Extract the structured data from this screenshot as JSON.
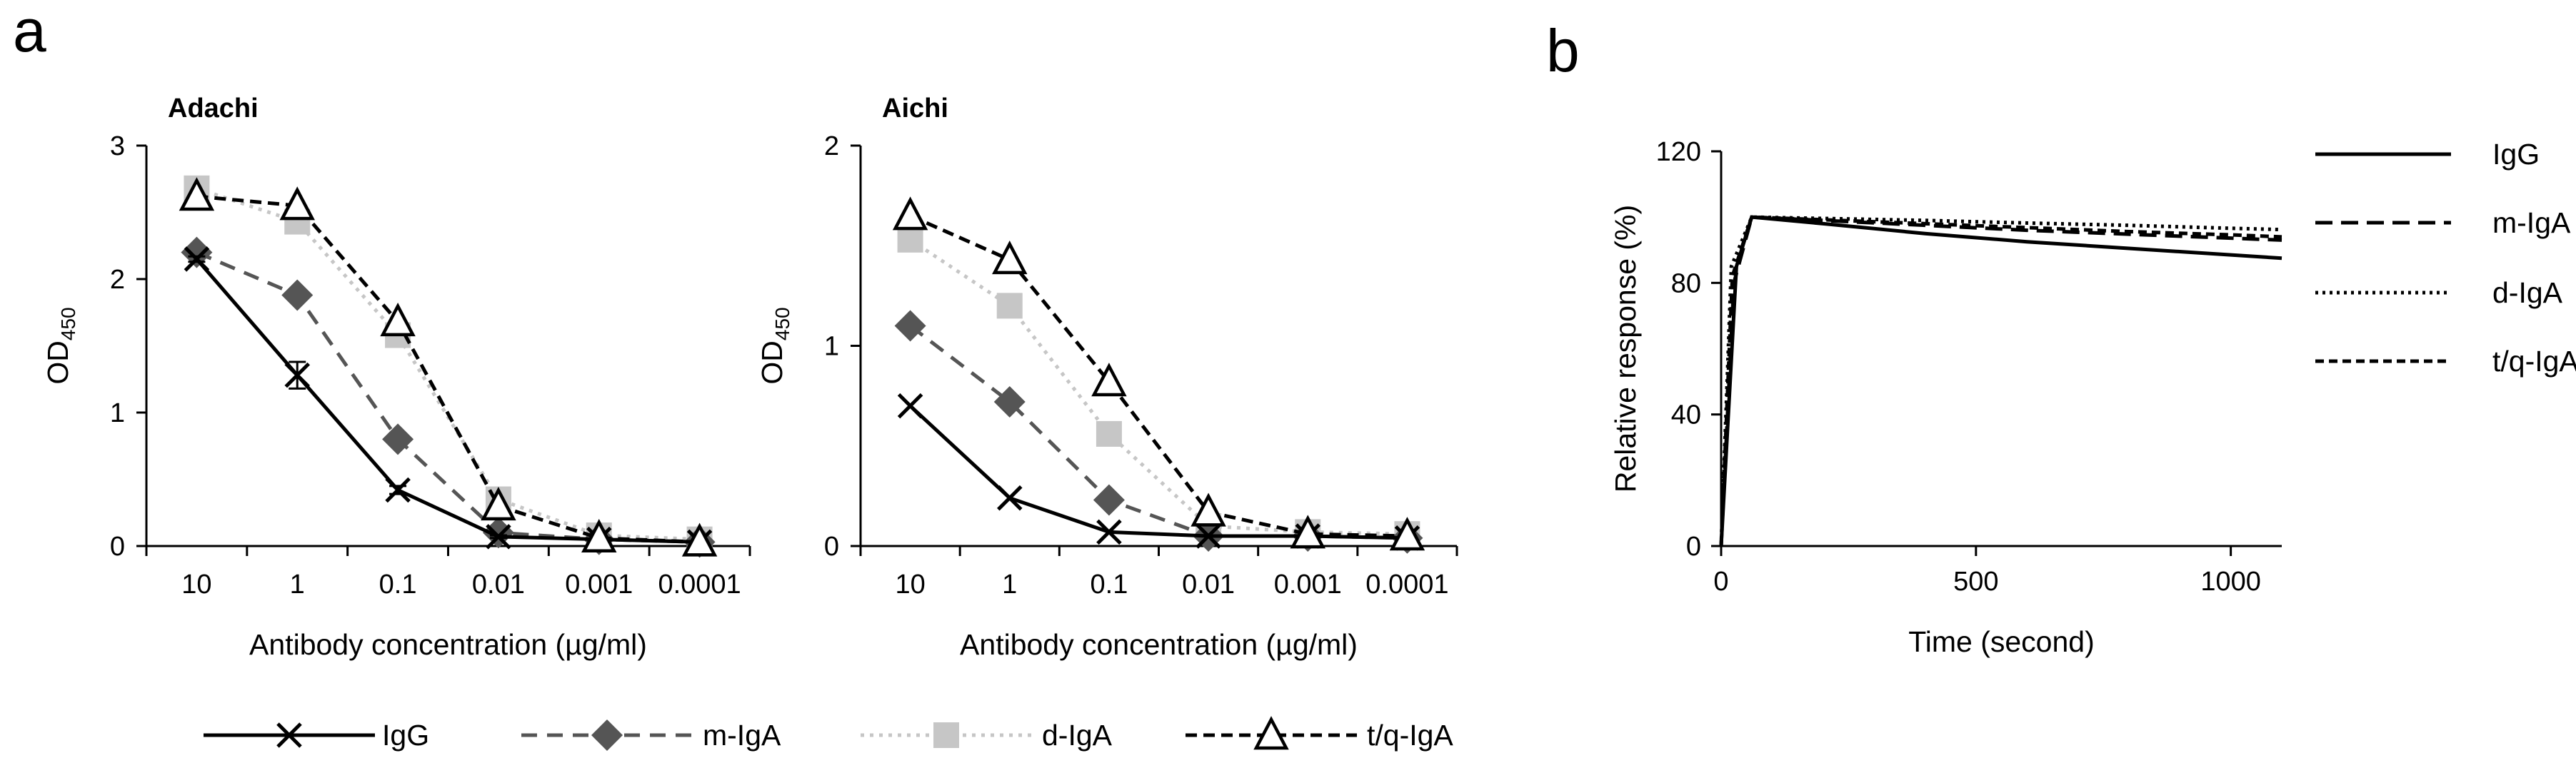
{
  "panels": {
    "a": "a",
    "b": "b"
  },
  "units": {
    "ylabel_sub": "450"
  },
  "chart_data": [
    {
      "type": "line",
      "title": "Adachi",
      "xlabel": "Antibody concentration (µg/ml)",
      "ylabel": "OD",
      "categories": [
        "10",
        "1",
        "0.1",
        "0.01",
        "0.001",
        "0.0001"
      ],
      "ylim": [
        0,
        3
      ],
      "yticks": [
        "0",
        "1",
        "2",
        "3"
      ],
      "series": [
        {
          "name": "IgG",
          "values": [
            2.15,
            1.28,
            0.42,
            0.07,
            0.05,
            0.03
          ],
          "errors": [
            0.02,
            0.1,
            0.03,
            0.01,
            0.01,
            0.01
          ]
        },
        {
          "name": "m-IgA",
          "values": [
            2.2,
            1.88,
            0.8,
            0.1,
            0.05,
            0.03
          ]
        },
        {
          "name": "d-IgA",
          "values": [
            2.68,
            2.43,
            1.58,
            0.35,
            0.08,
            0.05
          ]
        },
        {
          "name": "t/q-IgA",
          "values": [
            2.62,
            2.55,
            1.68,
            0.3,
            0.06,
            0.03
          ]
        }
      ]
    },
    {
      "type": "line",
      "title": "Aichi",
      "xlabel": "Antibody concentration (µg/ml)",
      "ylabel": "OD",
      "categories": [
        "10",
        "1",
        "0.1",
        "0.01",
        "0.001",
        "0.0001"
      ],
      "ylim": [
        0,
        2
      ],
      "yticks": [
        "0",
        "1",
        "2"
      ],
      "series": [
        {
          "name": "IgG",
          "values": [
            0.7,
            0.24,
            0.07,
            0.05,
            0.05,
            0.04
          ]
        },
        {
          "name": "m-IgA",
          "values": [
            1.1,
            0.72,
            0.23,
            0.05,
            0.05,
            0.04
          ]
        },
        {
          "name": "d-IgA",
          "values": [
            1.53,
            1.2,
            0.56,
            0.1,
            0.07,
            0.06
          ]
        },
        {
          "name": "t/q-IgA",
          "values": [
            1.65,
            1.43,
            0.82,
            0.17,
            0.06,
            0.05
          ]
        }
      ]
    },
    {
      "type": "line",
      "title": "",
      "xlabel": "Time (second)",
      "ylabel": "Relative response (%)",
      "xlim": [
        0,
        1100
      ],
      "ylim": [
        0,
        120
      ],
      "xticks": [
        0,
        500,
        1000
      ],
      "yticks": [
        0,
        40,
        80,
        120
      ],
      "series": [
        {
          "name": "IgG",
          "x": [
            0,
            30,
            60,
            200,
            400,
            600,
            800,
            1000,
            1100
          ],
          "y": [
            0,
            85,
            100,
            98,
            95,
            92.5,
            90.5,
            88.5,
            87.5
          ]
        },
        {
          "name": "m-IgA",
          "x": [
            0,
            25,
            60,
            200,
            400,
            600,
            800,
            1000,
            1100
          ],
          "y": [
            0,
            80,
            100,
            99,
            97.5,
            96,
            94.8,
            93.6,
            93
          ]
        },
        {
          "name": "d-IgA",
          "x": [
            0,
            20,
            60,
            200,
            400,
            600,
            800,
            1000,
            1100
          ],
          "y": [
            0,
            85,
            100,
            99.6,
            99,
            98.2,
            97.5,
            96.6,
            96.2
          ]
        },
        {
          "name": "t/q-IgA",
          "x": [
            0,
            22,
            60,
            200,
            400,
            600,
            800,
            1000,
            1100
          ],
          "y": [
            0,
            82,
            100,
            99.2,
            98,
            96.8,
            95.6,
            94.6,
            94
          ]
        }
      ]
    }
  ],
  "legend_a": [
    "IgG",
    "m-IgA",
    "d-IgA",
    "t/q-IgA"
  ],
  "legend_b": [
    "IgG",
    "m-IgA",
    "d-IgA",
    "t/q-IgA"
  ],
  "colors": {
    "IgG": "#000000",
    "m-IgA": "#555555",
    "d-IgA": "#c6c6c6",
    "t/q-IgA": "#000000"
  }
}
